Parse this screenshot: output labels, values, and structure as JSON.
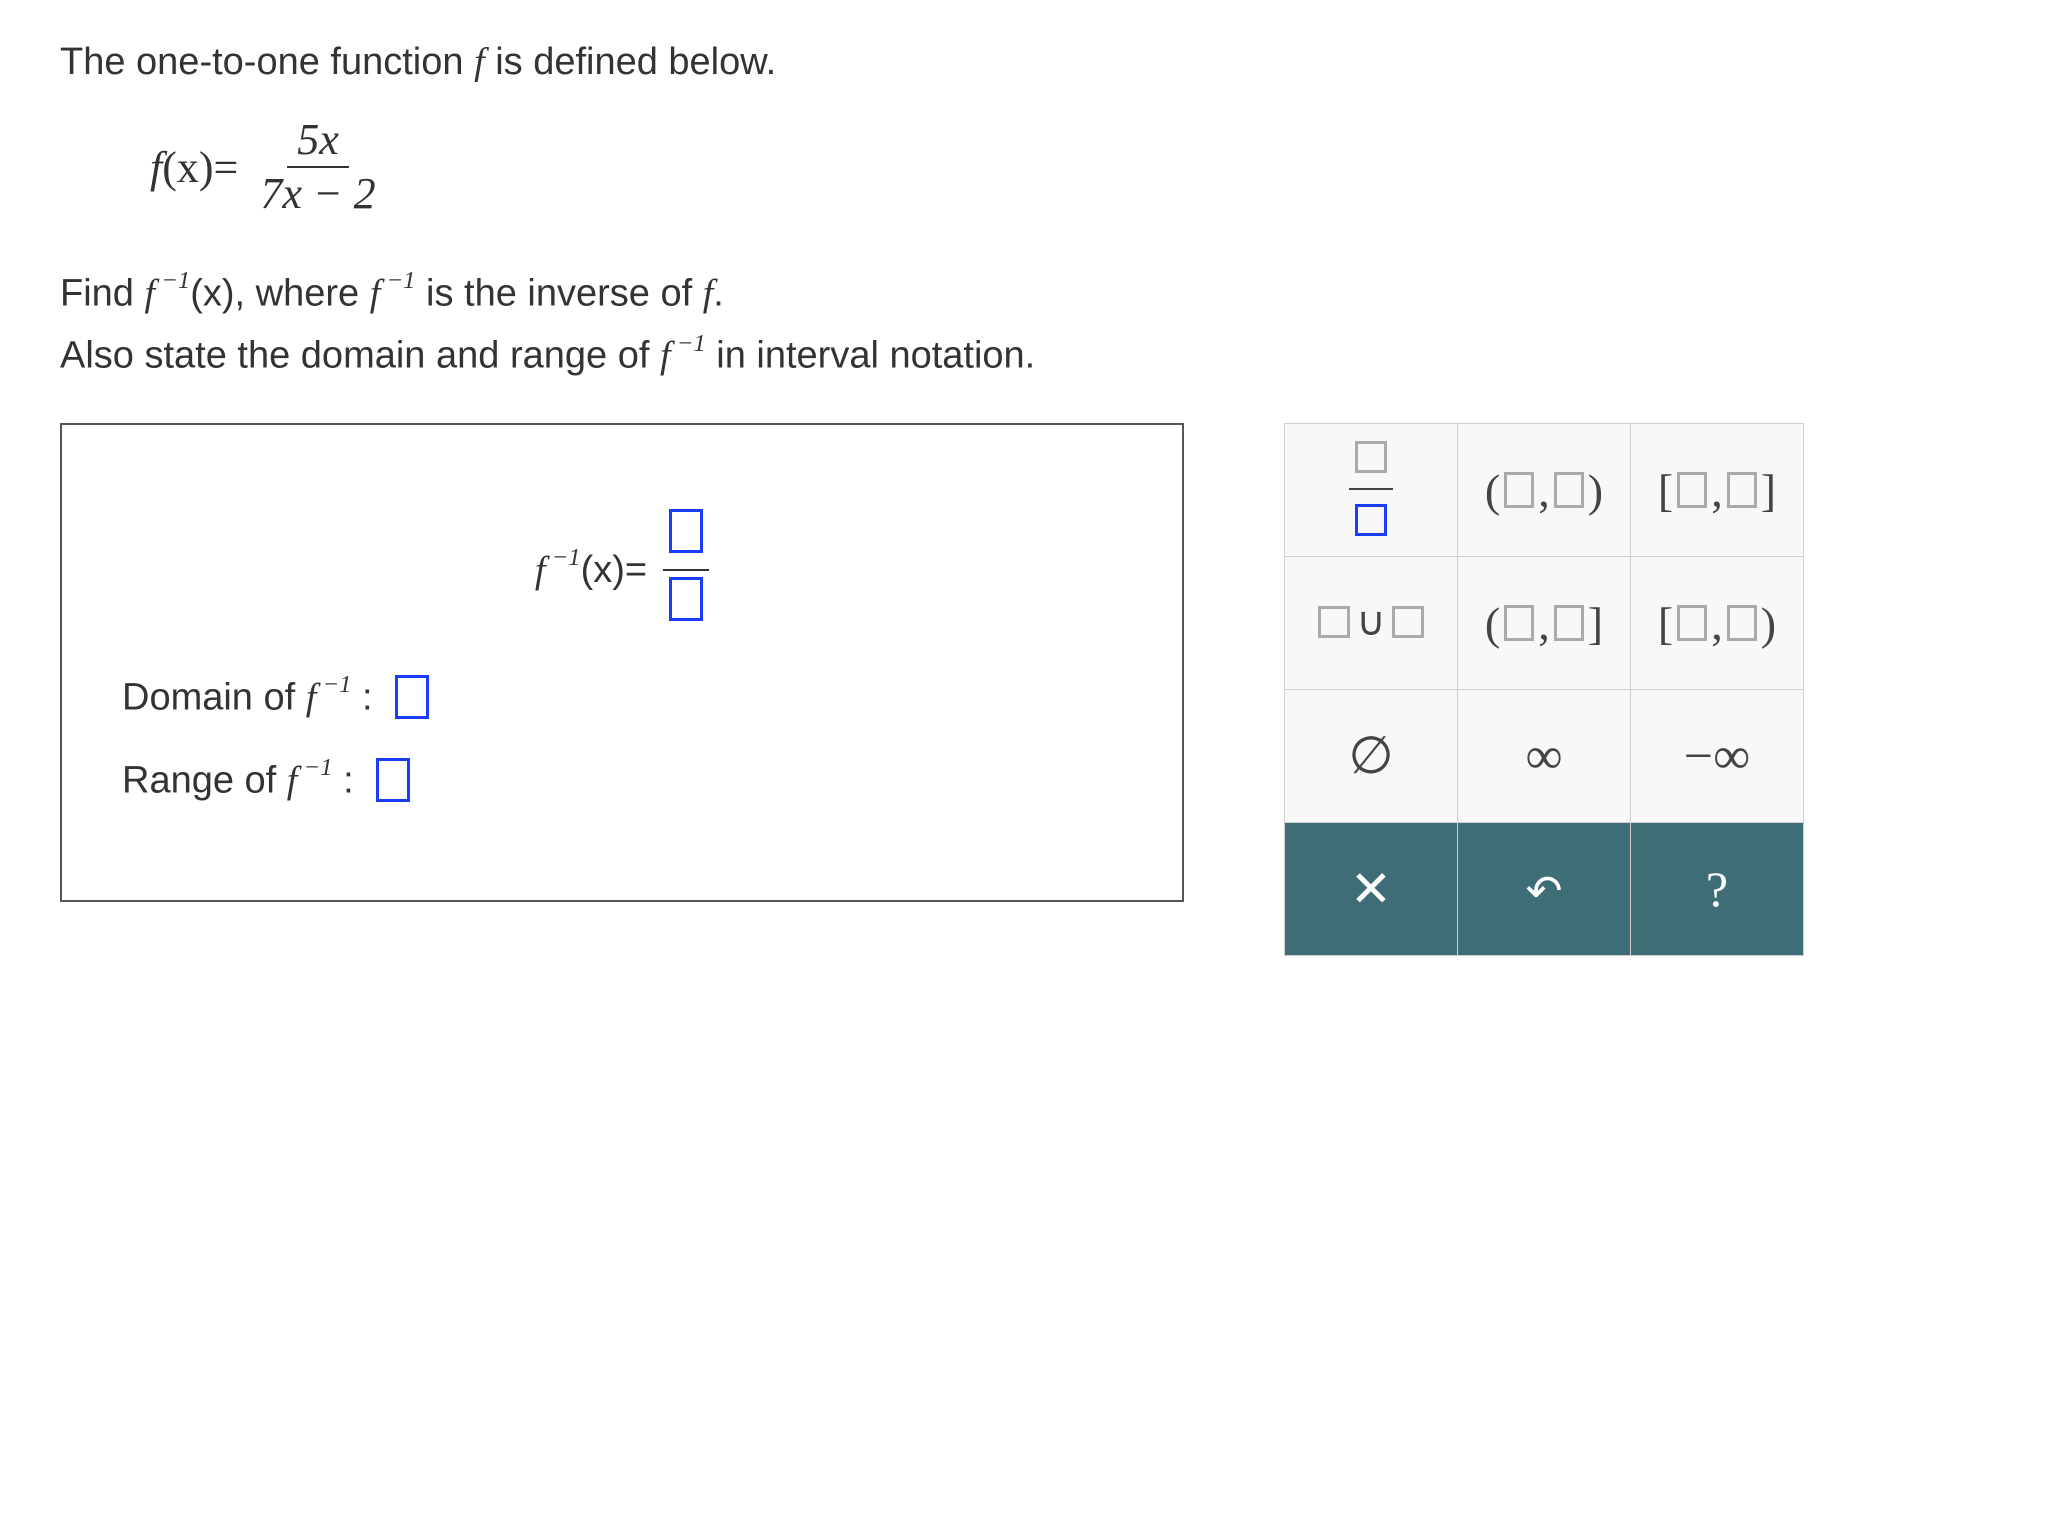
{
  "problem": {
    "intro_prefix": "The one-to-one function ",
    "intro_fvar": "f",
    "intro_suffix": " is defined below.",
    "equation": {
      "lhs_f": "f",
      "lhs_arg": "(x)",
      "equals": " = ",
      "numerator": "5x",
      "denominator": "7x − 2"
    },
    "line2": {
      "prefix": "Find ",
      "finv": "f",
      "finv_sup": " −1",
      "finv_arg": "(x)",
      "mid": ", where ",
      "finv2": "f",
      "finv2_sup": " −1",
      "suffix": " is the inverse of ",
      "fvar": "f",
      "period": "."
    },
    "line3": {
      "prefix": "Also state the domain and range of ",
      "finv": "f",
      "finv_sup": " −1",
      "suffix": " in interval notation."
    }
  },
  "answer_box": {
    "inverse": {
      "label_f": "f",
      "label_sup": " −1",
      "label_arg": "(x)",
      "label_eq": " = "
    },
    "domain": {
      "label_text": "Domain of ",
      "label_f": "f",
      "label_sup": " −1",
      "colon": " : "
    },
    "range": {
      "label_text": "Range of ",
      "label_f": "f",
      "label_sup": " −1",
      "colon": " : "
    }
  },
  "palette": {
    "row1": {
      "fraction_tooltip": "fraction",
      "open_closed_paren": "( , )",
      "closed_closed_bracket": "[ , ]"
    },
    "row2": {
      "union_symbol": "∪",
      "open_closed_mixed": "( , ]",
      "closed_open_mixed": "[ , )"
    },
    "row3": {
      "empty_set": "∅",
      "infinity": "∞",
      "neg_infinity": "−∞"
    },
    "actions": {
      "clear": "✕",
      "undo": "↶",
      "help": "?"
    }
  },
  "colors": {
    "placeholder_border": "#1a3cff",
    "text": "#333333",
    "palette_border": "#cfcfcf",
    "palette_bg": "#f8f8f8",
    "action_bg": "#3f6d77",
    "action_fg": "#ffffff"
  }
}
